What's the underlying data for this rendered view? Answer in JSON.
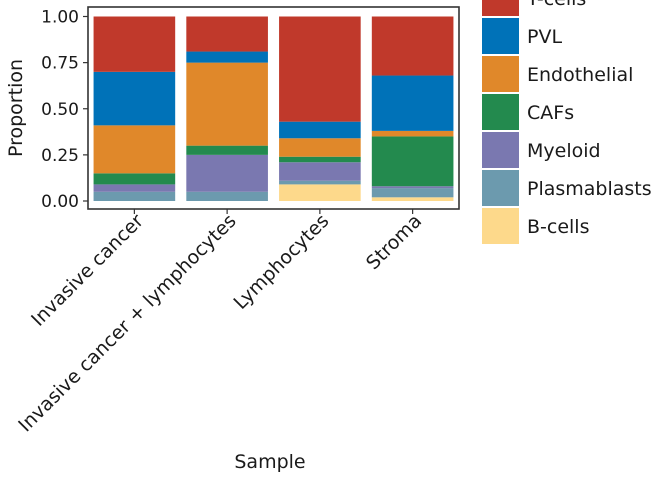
{
  "chart_data": {
    "type": "bar",
    "stacked": true,
    "xlabel": "Sample",
    "ylabel": "Proportion",
    "ylim": [
      0,
      1
    ],
    "yticks": [
      "0.00",
      "0.25",
      "0.50",
      "0.75",
      "1.00"
    ],
    "grid": false,
    "legend_position": "right",
    "categories": [
      "Invasive cancer",
      "Invasive cancer + lymphocytes",
      "Lymphocytes",
      "Stroma"
    ],
    "series": [
      {
        "name": "B-cells",
        "color": "#FDD98B",
        "values": [
          0.0,
          0.0,
          0.09,
          0.02
        ]
      },
      {
        "name": "Plasmablasts",
        "color": "#6C9AAE",
        "values": [
          0.05,
          0.05,
          0.02,
          0.05
        ]
      },
      {
        "name": "Myeloid",
        "color": "#7A78B0",
        "values": [
          0.04,
          0.2,
          0.1,
          0.01
        ]
      },
      {
        "name": "CAFs",
        "color": "#238A4E",
        "values": [
          0.06,
          0.05,
          0.03,
          0.27
        ]
      },
      {
        "name": "Endothelial",
        "color": "#E0882A",
        "values": [
          0.26,
          0.45,
          0.1,
          0.03
        ]
      },
      {
        "name": "PVL",
        "color": "#0072B8",
        "values": [
          0.29,
          0.06,
          0.09,
          0.3
        ]
      },
      {
        "name": "T-cells",
        "color": "#C0392B",
        "values": [
          0.3,
          0.19,
          0.57,
          0.32
        ]
      }
    ],
    "legend_order": [
      "T-cells",
      "PVL",
      "Endothelial",
      "CAFs",
      "Myeloid",
      "Plasmablasts",
      "B-cells"
    ]
  }
}
